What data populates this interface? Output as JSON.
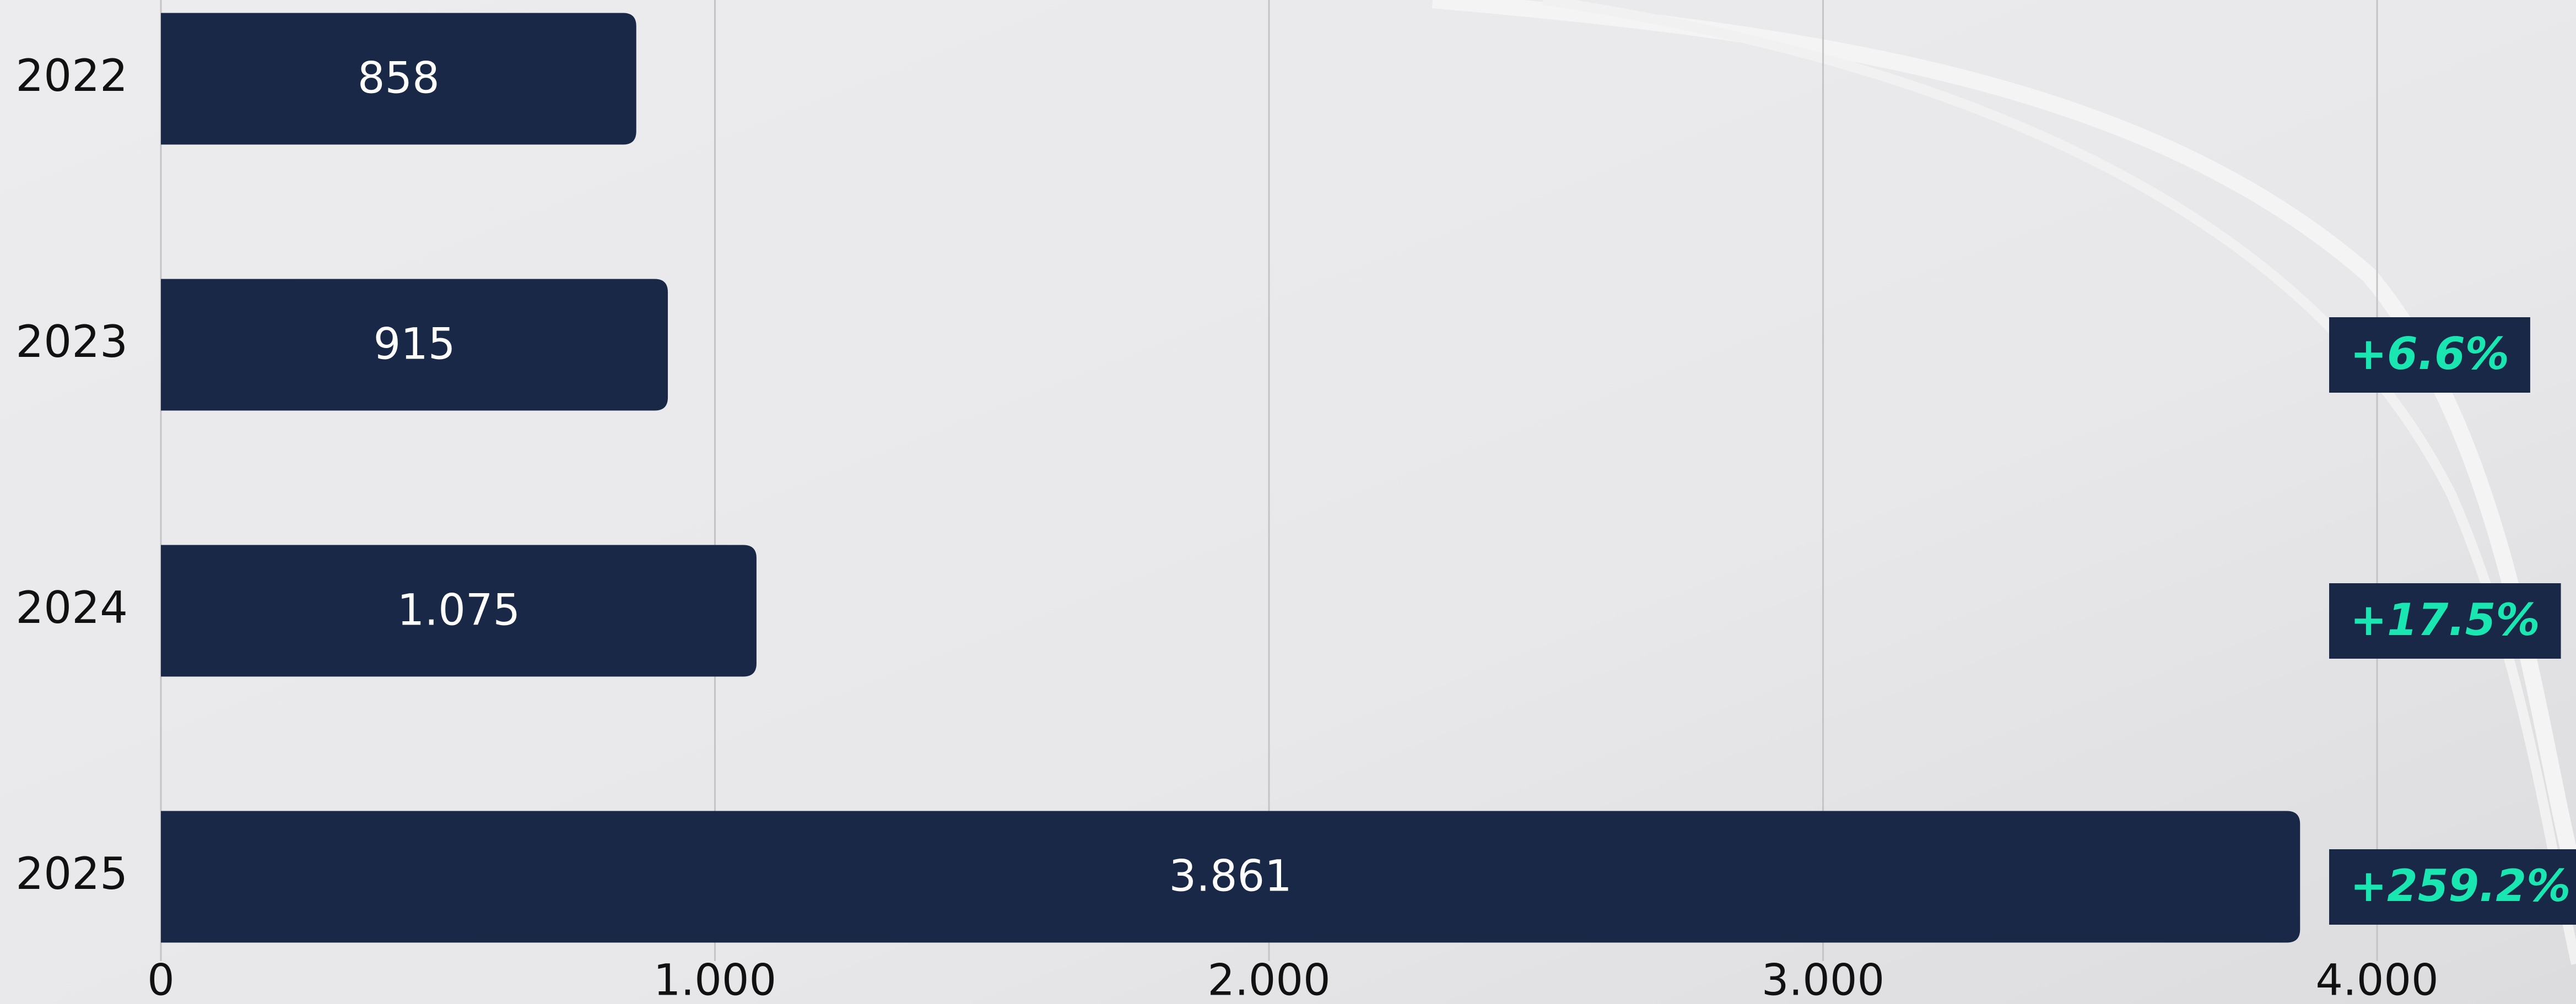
{
  "chart_data": {
    "type": "bar",
    "orientation": "horizontal",
    "categories": [
      "2022",
      "2023",
      "2024",
      "2025"
    ],
    "values": [
      858,
      915,
      1075,
      3861
    ],
    "value_labels": [
      "858",
      "915",
      "1.075",
      "3.861"
    ],
    "color": "#1a2847",
    "xlim": [
      0,
      4000
    ],
    "xticks": [
      0,
      {
        "value": 1000,
        "label": "1.000"
      },
      {
        "value": 2000,
        "label": "2.000"
      },
      {
        "value": 3000,
        "label": "3.000"
      },
      {
        "value": 4000,
        "label": "4.000"
      }
    ],
    "grid": true,
    "growth_labels": [
      "+6.6%",
      "+17.5%",
      "+259.2%"
    ],
    "growth_color": "#19e6b0"
  }
}
